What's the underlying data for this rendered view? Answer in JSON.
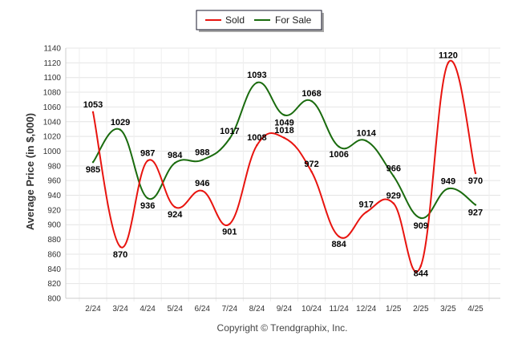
{
  "chart_data": {
    "type": "line",
    "categories": [
      "2/24",
      "3/24",
      "4/24",
      "5/24",
      "6/24",
      "7/24",
      "8/24",
      "9/24",
      "10/24",
      "11/24",
      "12/24",
      "1/25",
      "2/25",
      "3/25",
      "4/25"
    ],
    "series": [
      {
        "name": "Sold",
        "color": "#e8140f",
        "values": [
          1053,
          870,
          987,
          924,
          946,
          901,
          1008,
          1018,
          972,
          884,
          917,
          929,
          844,
          1120,
          970
        ]
      },
      {
        "name": "For Sale",
        "color": "#1a6b0e",
        "values": [
          985,
          1029,
          936,
          984,
          988,
          1017,
          1093,
          1049,
          1068,
          1006,
          1014,
          966,
          909,
          949,
          927
        ]
      }
    ],
    "ylabel": "Average Price (in $,000)",
    "xlabel": "",
    "ylim": [
      800,
      1140
    ],
    "ytick_step": 20,
    "grid": true,
    "legend_position": "top-center"
  },
  "credit": "Copyright © Trendgraphix, Inc."
}
